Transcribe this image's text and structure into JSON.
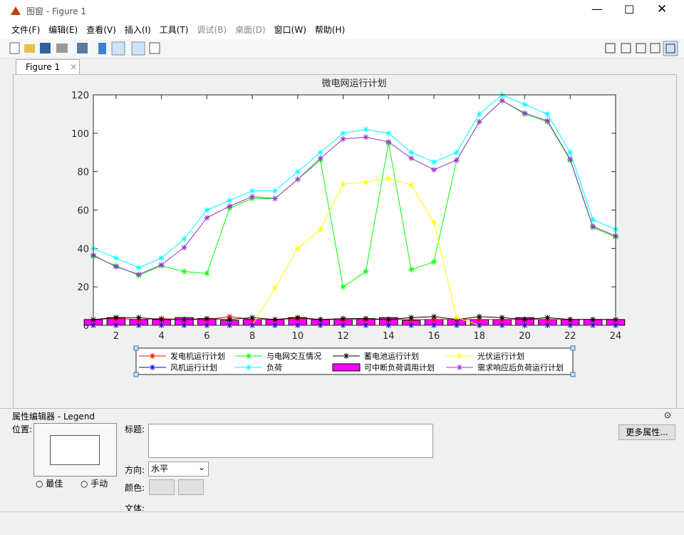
{
  "window": {
    "title": "图窗 - Figure 1"
  },
  "menu": [
    "文件(F)",
    "编辑(E)",
    "查看(V)",
    "插入(I)",
    "工具(T)",
    "调试(B)",
    "桌面(D)",
    "窗口(W)",
    "帮助(H)"
  ],
  "tab": "Figure 1",
  "chart_data": {
    "type": "line",
    "title": "微电网运行计划",
    "x": [
      1,
      2,
      3,
      4,
      5,
      6,
      7,
      8,
      9,
      10,
      11,
      12,
      13,
      14,
      15,
      16,
      17,
      18,
      19,
      20,
      21,
      22,
      23,
      24
    ],
    "xlim": [
      1,
      24
    ],
    "xticks": [
      2,
      4,
      6,
      8,
      10,
      12,
      14,
      16,
      18,
      20,
      22,
      24
    ],
    "ylim": [
      0,
      120
    ],
    "yticks": [
      0,
      20,
      40,
      60,
      80,
      100,
      120
    ],
    "legend": "south",
    "series": [
      {
        "name": "发电机运行计划",
        "color": "#ff0000",
        "values": [
          3,
          3.5,
          3,
          3.5,
          3,
          3,
          4.5,
          3,
          3,
          3.5,
          3,
          3,
          3,
          3,
          3,
          3,
          3,
          3,
          3,
          3,
          3,
          3,
          3,
          3
        ]
      },
      {
        "name": "与电网交互情况",
        "color": "#00ff00",
        "values": [
          36,
          31,
          26,
          31,
          28,
          27,
          61,
          66,
          66,
          76,
          86,
          20,
          28,
          95,
          29,
          33,
          86,
          106,
          117,
          110,
          106,
          86,
          51,
          46
        ]
      },
      {
        "name": "蓄电池运行计划",
        "color": "#000000",
        "values": [
          3,
          4,
          4,
          3,
          3,
          3.5,
          3,
          4,
          3,
          4,
          3,
          3.5,
          3.5,
          3,
          4,
          4.5,
          3,
          4.5,
          4,
          3,
          4,
          3,
          3,
          3
        ]
      },
      {
        "name": "光伏运行计划",
        "color": "#ffff00",
        "values": [
          0,
          0,
          0,
          0,
          0,
          0,
          0,
          0,
          19.5,
          40,
          50,
          73.5,
          74.5,
          76.5,
          73,
          53.5,
          4,
          0,
          0,
          0,
          0,
          0,
          0,
          0
        ]
      },
      {
        "name": "风机运行计划",
        "color": "#0000ff",
        "values": [
          0,
          0,
          0,
          0,
          0,
          0,
          0,
          0,
          0,
          0,
          0,
          0,
          0,
          0,
          0,
          0,
          0,
          0,
          0,
          0,
          0,
          0,
          0,
          0
        ]
      },
      {
        "name": "负荷",
        "color": "#00ffff",
        "values": [
          40,
          35,
          30,
          35,
          45,
          60,
          65,
          70,
          70,
          80,
          90,
          100,
          102,
          100,
          90,
          85,
          90,
          110,
          120,
          115,
          110,
          90,
          55,
          50
        ]
      },
      {
        "name": "可中断负荷调用计划",
        "color": "#ff00ff",
        "type": "bar",
        "values": [
          3,
          4,
          3,
          3,
          4,
          3.5,
          2.5,
          3,
          3,
          4,
          3,
          3,
          3.5,
          4,
          2.5,
          3,
          3,
          3,
          3,
          4,
          3,
          3,
          3,
          3
        ]
      },
      {
        "name": "需求响应后负荷运行计划",
        "color": "#9933cc",
        "values": [
          36.5,
          30.5,
          26.5,
          31.5,
          40.5,
          56,
          62,
          67,
          66,
          76,
          87,
          97,
          98,
          95.5,
          87,
          81,
          86,
          106,
          117,
          110.5,
          106.5,
          86.5,
          51.5,
          46.5
        ]
      }
    ]
  },
  "property_editor": {
    "title": "属性编辑器 - Legend",
    "position_label": "位置:",
    "best": "最佳",
    "manual": "手动",
    "title_label": "标题:",
    "direction_label": "方向:",
    "direction": "水平",
    "color_label": "颜色:",
    "font_label": "文体:",
    "more": "更多属性..."
  }
}
